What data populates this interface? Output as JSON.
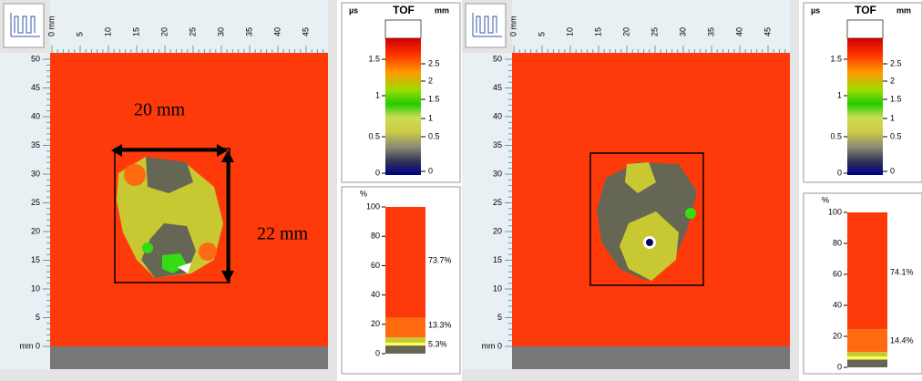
{
  "panels": [
    {
      "ruler_top": [
        "0 mm",
        "5",
        "10",
        "15",
        "20",
        "25",
        "30",
        "35",
        "40",
        "45"
      ],
      "ruler_left": [
        "50",
        "45",
        "40",
        "35",
        "30",
        "25",
        "20",
        "15",
        "10",
        "5",
        "mm 0"
      ],
      "annotations": [
        "20 mm",
        "22 mm"
      ],
      "tof": {
        "unit_left": "µs",
        "title": "TOF",
        "unit_right": "mm",
        "ticks_left": [
          "1.5",
          "1",
          "0.5",
          "0"
        ],
        "ticks_right": [
          "2.5",
          "2",
          "1.5",
          "1",
          "0.5",
          "0"
        ]
      },
      "histogram": {
        "unit": "%",
        "ticks": [
          "100",
          "80",
          "60",
          "40",
          "20",
          "0"
        ],
        "labels": [
          "73.7%",
          "13.3%",
          "5.3%"
        ]
      }
    },
    {
      "ruler_top": [
        "0 mm",
        "5",
        "10",
        "15",
        "20",
        "25",
        "30",
        "35",
        "40",
        "45"
      ],
      "ruler_left": [
        "50",
        "45",
        "40",
        "35",
        "30",
        "25",
        "20",
        "15",
        "10",
        "5",
        "mm 0"
      ],
      "tof": {
        "unit_left": "µs",
        "title": "TOF",
        "unit_right": "mm",
        "ticks_left": [
          "1.5",
          "1",
          "0.5",
          "0"
        ],
        "ticks_right": [
          "2.5",
          "2",
          "1.5",
          "1",
          "0.5",
          "0"
        ]
      },
      "histogram": {
        "unit": "%",
        "ticks": [
          "100",
          "80",
          "60",
          "40",
          "20",
          "0"
        ],
        "labels": [
          "74.1%",
          "14.4%"
        ]
      }
    }
  ]
}
